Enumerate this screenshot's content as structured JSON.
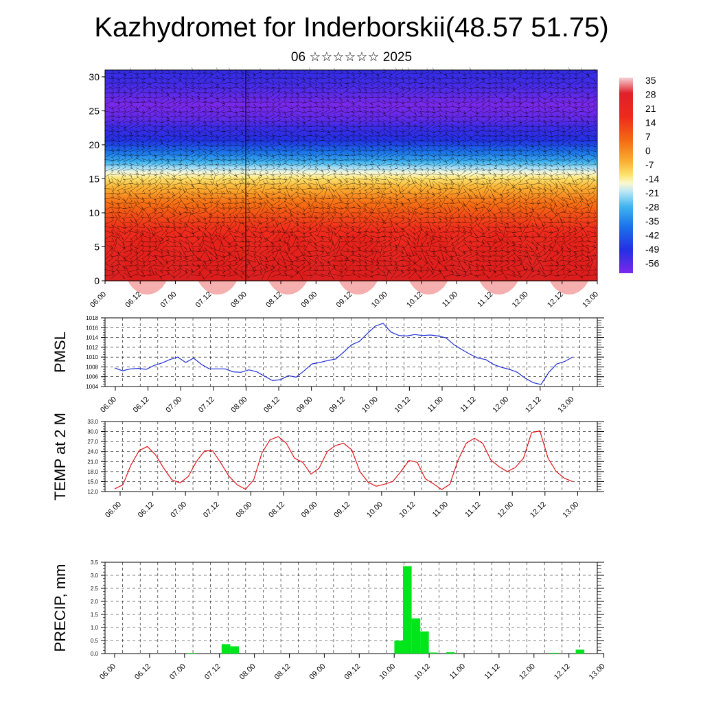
{
  "header": {
    "title": "Kazhydromet for Inderborskii(48.57 51.75)",
    "subtitle": "06 ☆☆☆☆☆☆ 2025"
  },
  "time_labels": [
    "06.00",
    "06.12",
    "07.00",
    "07.12",
    "08.00",
    "08.12",
    "09.00",
    "09.12",
    "10.00",
    "10.12",
    "11.00",
    "11.12",
    "12.00",
    "12.12",
    "13.00"
  ],
  "colors": {
    "pmsl": "#1f2fd6",
    "temp": "#e0141a",
    "precip": "#00e61a",
    "wind_barbs": "#000000"
  },
  "chart_data": [
    {
      "type": "heatmap",
      "title": "Kazhydromet for Inderborskii(48.57 51.75)",
      "subtitle": "06 ☆☆☆☆☆☆ 2025",
      "x": [
        "06.00",
        "06.12",
        "07.00",
        "07.12",
        "08.00",
        "08.12",
        "09.00",
        "09.12",
        "10.00",
        "10.12",
        "11.00",
        "11.12",
        "12.00",
        "12.12",
        "13.00"
      ],
      "yticks": [
        0,
        5,
        10,
        15,
        20,
        25,
        30
      ],
      "ylim": [
        0,
        31
      ],
      "colorbar_labels": [
        "35",
        "28",
        "21",
        "14",
        "7",
        "0",
        "-7",
        "-14",
        "-21",
        "-28",
        "-35",
        "-42",
        "-49",
        "-56"
      ],
      "colorbar_range": [
        -60,
        37
      ],
      "overlay": "wind barbs",
      "temperature_profile": [
        [
          0,
          26
        ],
        [
          2,
          24
        ],
        [
          5,
          21
        ],
        [
          8,
          17
        ],
        [
          10,
          13
        ],
        [
          12,
          8
        ],
        [
          14,
          1
        ],
        [
          15,
          -5
        ],
        [
          16,
          -12
        ],
        [
          18,
          -28
        ],
        [
          20,
          -40
        ],
        [
          22,
          -50
        ],
        [
          24,
          -57
        ],
        [
          26,
          -60
        ],
        [
          28,
          -55
        ],
        [
          31,
          -50
        ]
      ]
    },
    {
      "type": "line",
      "ylabel": "PMSL",
      "ylim": [
        1004,
        1018
      ],
      "yticks": [
        1004,
        1006,
        1008,
        1010,
        1012,
        1014,
        1016,
        1018
      ],
      "x_step_hours": 3,
      "series": [
        {
          "values": [
            1007.8,
            1007.2,
            1007.6,
            1007.7,
            1007.5,
            1008.3,
            1008.8,
            1009.5,
            1010.0,
            1008.9,
            1009.8,
            1008.5,
            1007.6,
            1007.6,
            1007.6,
            1007.0,
            1006.9,
            1007.4,
            1007.0,
            1006.1,
            1005.2,
            1005.4,
            1006.2,
            1005.9,
            1007.2,
            1008.6,
            1008.9,
            1009.3,
            1009.6,
            1011.0,
            1012.5,
            1013.2,
            1014.8,
            1016.3,
            1016.9,
            1015.1,
            1014.4,
            1014.3,
            1014.6,
            1014.4,
            1014.5,
            1014.3,
            1013.9,
            1012.5,
            1011.5,
            1010.6,
            1009.8,
            1009.5,
            1008.5,
            1007.9,
            1007.5,
            1006.9,
            1005.7,
            1004.8,
            1004.4,
            1006.9,
            1008.6,
            1009.1,
            1010.0
          ]
        }
      ]
    },
    {
      "type": "line",
      "ylabel": "TEMP at 2 M",
      "ylim": [
        12,
        33
      ],
      "yticks": [
        "12.0",
        "15.0",
        "18.0",
        "21.0",
        "24.0",
        "27.0",
        "30.0",
        "33.0"
      ],
      "x_step_hours": 3,
      "series": [
        {
          "values": [
            12.8,
            14.0,
            20.0,
            24.3,
            25.5,
            23.0,
            19.0,
            15.5,
            14.6,
            16.5,
            21.0,
            24.2,
            24.2,
            20.5,
            16.5,
            14.0,
            12.7,
            15.5,
            23.5,
            27.5,
            28.5,
            26.5,
            22.0,
            20.8,
            17.2,
            19.0,
            24.0,
            25.8,
            26.5,
            24.5,
            18.0,
            14.8,
            13.6,
            14.2,
            15.0,
            18.0,
            21.3,
            20.8,
            15.8,
            14.3,
            12.6,
            14.2,
            21.5,
            26.5,
            28.0,
            26.5,
            21.5,
            19.5,
            18.0,
            19.2,
            22.0,
            29.7,
            30.2,
            22.0,
            18.0,
            16.0,
            15.0
          ]
        }
      ]
    },
    {
      "type": "bar",
      "ylabel": "PRECIP, mm",
      "ylim": [
        0,
        3.5
      ],
      "yticks": [
        "0.0",
        "0.5",
        "1.0",
        "1.5",
        "2.0",
        "2.5",
        "3.0",
        "3.5"
      ],
      "x_step_hours": 3,
      "values": [
        0,
        0,
        0,
        0,
        0,
        0,
        0,
        0,
        0,
        0.02,
        0,
        0,
        0,
        0.36,
        0.28,
        0,
        0,
        0,
        0,
        0,
        0,
        0,
        0,
        0,
        0,
        0,
        0,
        0,
        0,
        0,
        0,
        0,
        0,
        0.5,
        3.35,
        1.35,
        0.85,
        0.04,
        0,
        0.05,
        0,
        0,
        0,
        0,
        0,
        0,
        0,
        0,
        0,
        0,
        0,
        0.03,
        0,
        0,
        0.15,
        0
      ]
    }
  ]
}
